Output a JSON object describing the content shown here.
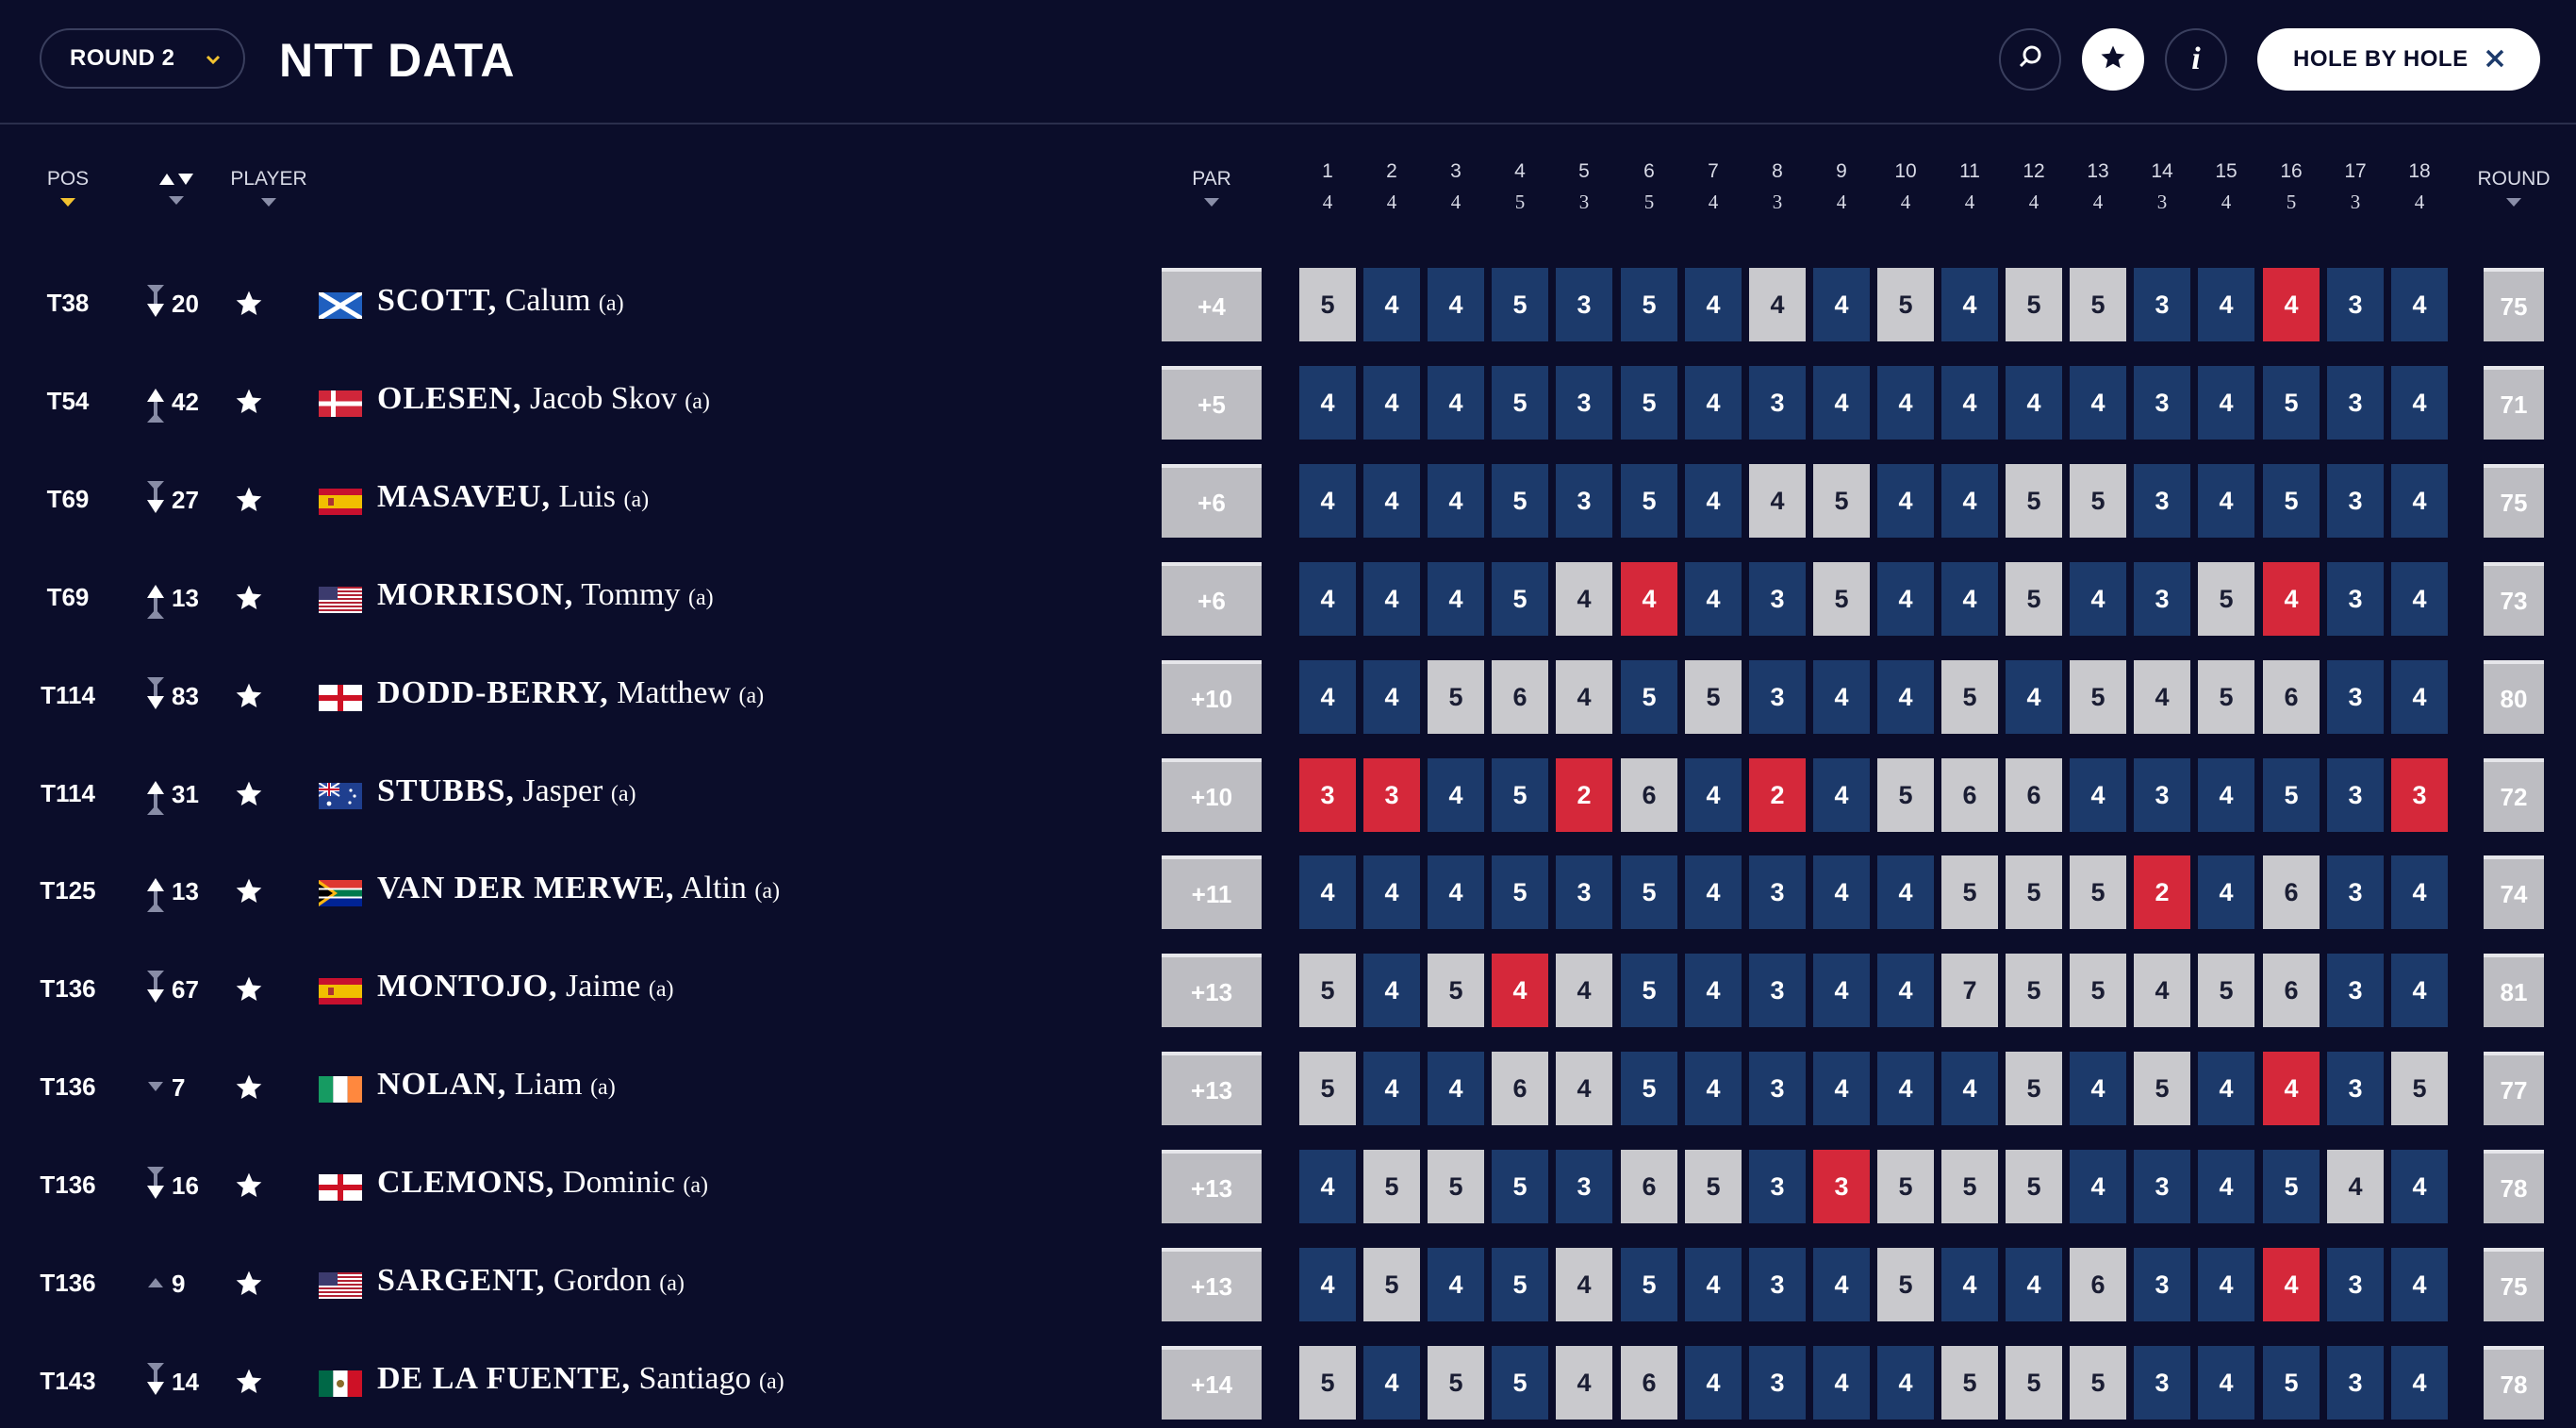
{
  "header": {
    "round_label": "ROUND 2",
    "logo_text": "NTT DATA",
    "hole_by_hole_label": "HOLE BY HOLE",
    "icons": [
      "chevron-down-icon",
      "search-icon",
      "star-icon",
      "info-icon",
      "close-icon"
    ]
  },
  "columns": {
    "pos": "POS",
    "player": "PLAYER",
    "par": "PAR",
    "round": "ROUND"
  },
  "holes": [
    "1",
    "2",
    "3",
    "4",
    "5",
    "6",
    "7",
    "8",
    "9",
    "10",
    "11",
    "12",
    "13",
    "14",
    "15",
    "16",
    "17",
    "18"
  ],
  "hole_pars": [
    "4",
    "4",
    "4",
    "5",
    "3",
    "5",
    "4",
    "3",
    "4",
    "4",
    "4",
    "4",
    "4",
    "3",
    "4",
    "5",
    "3",
    "4"
  ],
  "colors": {
    "background": "#0b0d2a",
    "par": "#1c3a6b",
    "over_par": "#c9c9cd",
    "under_par": "#d5283a",
    "accent": "#f2c230"
  },
  "players": [
    {
      "pos": "T38",
      "dir": "down",
      "move": "20",
      "flag": "SCO",
      "last": "SCOTT,",
      "first": "Calum",
      "am": "(a)",
      "topar": "+4",
      "scores": [
        "5",
        "4",
        "4",
        "5",
        "3",
        "5",
        "4",
        "4",
        "4",
        "5",
        "4",
        "5",
        "5",
        "3",
        "4",
        "4",
        "3",
        "4"
      ],
      "round": "75"
    },
    {
      "pos": "T54",
      "dir": "up",
      "move": "42",
      "flag": "DEN",
      "last": "OLESEN,",
      "first": "Jacob Skov",
      "am": "(a)",
      "topar": "+5",
      "scores": [
        "4",
        "4",
        "4",
        "5",
        "3",
        "5",
        "4",
        "3",
        "4",
        "4",
        "4",
        "4",
        "4",
        "3",
        "4",
        "5",
        "3",
        "4"
      ],
      "round": "71"
    },
    {
      "pos": "T69",
      "dir": "down",
      "move": "27",
      "flag": "ESP",
      "last": "MASAVEU,",
      "first": "Luis",
      "am": "(a)",
      "topar": "+6",
      "scores": [
        "4",
        "4",
        "4",
        "5",
        "3",
        "5",
        "4",
        "4",
        "5",
        "4",
        "4",
        "5",
        "5",
        "3",
        "4",
        "5",
        "3",
        "4"
      ],
      "round": "75"
    },
    {
      "pos": "T69",
      "dir": "up",
      "move": "13",
      "flag": "USA",
      "last": "MORRISON,",
      "first": "Tommy",
      "am": "(a)",
      "topar": "+6",
      "scores": [
        "4",
        "4",
        "4",
        "5",
        "4",
        "4",
        "4",
        "3",
        "5",
        "4",
        "4",
        "5",
        "4",
        "3",
        "5",
        "4",
        "3",
        "4"
      ],
      "round": "73"
    },
    {
      "pos": "T114",
      "dir": "down",
      "move": "83",
      "flag": "ENG",
      "last": "DODD-BERRY,",
      "first": "Matthew",
      "am": "(a)",
      "topar": "+10",
      "scores": [
        "4",
        "4",
        "5",
        "6",
        "4",
        "5",
        "5",
        "3",
        "4",
        "4",
        "5",
        "4",
        "5",
        "4",
        "5",
        "6",
        "3",
        "4"
      ],
      "round": "80"
    },
    {
      "pos": "T114",
      "dir": "up",
      "move": "31",
      "flag": "AUS",
      "last": "STUBBS,",
      "first": "Jasper",
      "am": "(a)",
      "topar": "+10",
      "scores": [
        "3",
        "3",
        "4",
        "5",
        "2",
        "6",
        "4",
        "2",
        "4",
        "5",
        "6",
        "6",
        "4",
        "3",
        "4",
        "5",
        "3",
        "3"
      ],
      "round": "72"
    },
    {
      "pos": "T125",
      "dir": "up",
      "move": "13",
      "flag": "RSA",
      "last": "VAN DER MERWE,",
      "first": "Altin",
      "am": "(a)",
      "topar": "+11",
      "scores": [
        "4",
        "4",
        "4",
        "5",
        "3",
        "5",
        "4",
        "3",
        "4",
        "4",
        "5",
        "5",
        "5",
        "2",
        "4",
        "6",
        "3",
        "4"
      ],
      "round": "74"
    },
    {
      "pos": "T136",
      "dir": "down",
      "move": "67",
      "flag": "ESP",
      "last": "MONTOJO,",
      "first": "Jaime",
      "am": "(a)",
      "topar": "+13",
      "scores": [
        "5",
        "4",
        "5",
        "4",
        "4",
        "5",
        "4",
        "3",
        "4",
        "4",
        "7",
        "5",
        "5",
        "4",
        "5",
        "6",
        "3",
        "4"
      ],
      "round": "81"
    },
    {
      "pos": "T136",
      "dir": "down-small",
      "move": "7",
      "flag": "IRL",
      "last": "NOLAN,",
      "first": "Liam",
      "am": "(a)",
      "topar": "+13",
      "scores": [
        "5",
        "4",
        "4",
        "6",
        "4",
        "5",
        "4",
        "3",
        "4",
        "4",
        "4",
        "5",
        "4",
        "5",
        "4",
        "4",
        "3",
        "5"
      ],
      "round": "77"
    },
    {
      "pos": "T136",
      "dir": "down",
      "move": "16",
      "flag": "ENG",
      "last": "CLEMONS,",
      "first": "Dominic",
      "am": "(a)",
      "topar": "+13",
      "scores": [
        "4",
        "5",
        "5",
        "5",
        "3",
        "6",
        "5",
        "3",
        "3",
        "5",
        "5",
        "5",
        "4",
        "3",
        "4",
        "5",
        "4",
        "4"
      ],
      "round": "78"
    },
    {
      "pos": "T136",
      "dir": "up-small",
      "move": "9",
      "flag": "USA",
      "last": "SARGENT,",
      "first": "Gordon",
      "am": "(a)",
      "topar": "+13",
      "scores": [
        "4",
        "5",
        "4",
        "5",
        "4",
        "5",
        "4",
        "3",
        "4",
        "5",
        "4",
        "4",
        "6",
        "3",
        "4",
        "4",
        "3",
        "4"
      ],
      "round": "75"
    },
    {
      "pos": "T143",
      "dir": "down",
      "move": "14",
      "flag": "MEX",
      "last": "DE LA FUENTE,",
      "first": "Santiago",
      "am": "(a)",
      "topar": "+14",
      "scores": [
        "5",
        "4",
        "5",
        "5",
        "4",
        "6",
        "4",
        "3",
        "4",
        "4",
        "5",
        "5",
        "5",
        "3",
        "4",
        "5",
        "3",
        "4"
      ],
      "round": "78"
    }
  ]
}
